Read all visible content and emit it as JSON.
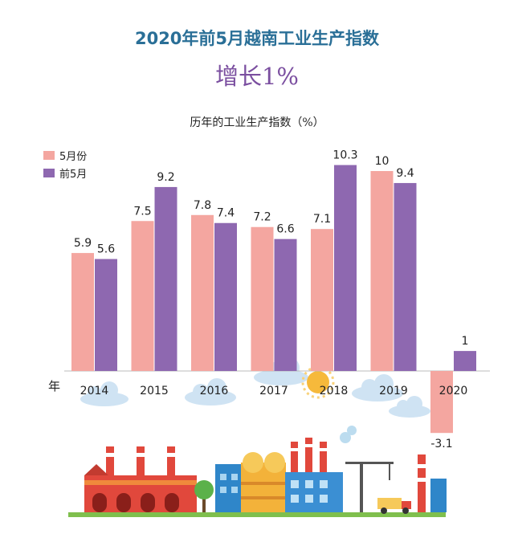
{
  "header": {
    "title": "2020年前5月越南工业生产指数",
    "headline": "增长1%"
  },
  "chart_data": {
    "type": "bar",
    "title": "历年的工业生产指数（%）",
    "x_unit_label": "年",
    "categories": [
      "2014",
      "2015",
      "2016",
      "2017",
      "2018",
      "2019",
      "2020"
    ],
    "series": [
      {
        "name": "5月份",
        "color": "#f4a6a0",
        "values": [
          5.9,
          7.5,
          7.8,
          7.2,
          7.1,
          10,
          -3.1
        ]
      },
      {
        "name": "前5月",
        "color": "#8e68b0",
        "values": [
          5.6,
          9.2,
          7.4,
          6.6,
          10.3,
          9.4,
          1
        ]
      }
    ],
    "ylim": [
      -3.1,
      10.3
    ],
    "grid": false,
    "legend_position": "top-left"
  }
}
